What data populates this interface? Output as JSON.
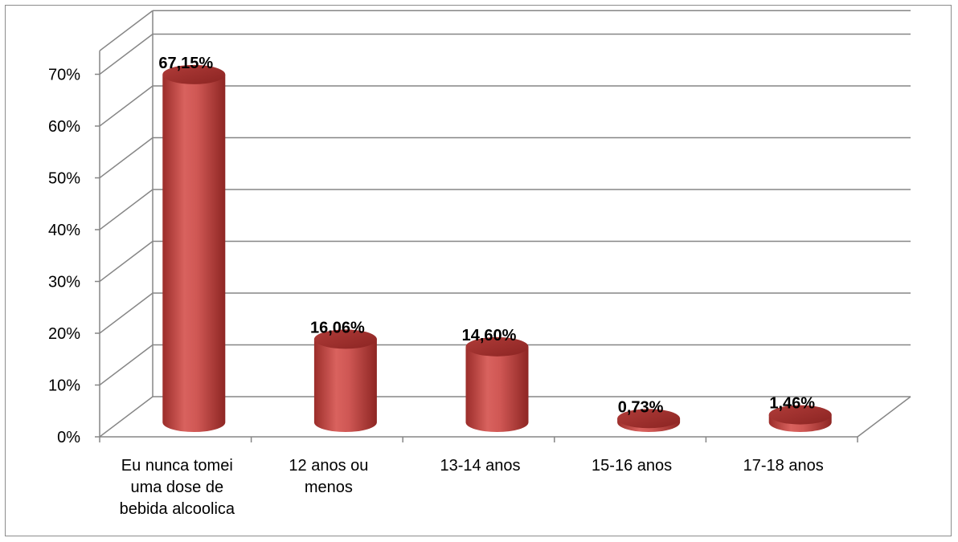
{
  "chart_data": {
    "type": "bar",
    "style": "3d-cylinder",
    "categories": [
      "Eu nunca tomei uma dose de bebida alcoolica",
      "12 anos ou menos",
      "13-14 anos",
      "15-16 anos",
      "17-18 anos"
    ],
    "values": [
      67.15,
      16.06,
      14.6,
      0.73,
      1.46
    ],
    "data_labels": [
      "67,15%",
      "16,06%",
      "14,60%",
      "0,73%",
      "1,46%"
    ],
    "yticks": [
      "0%",
      "10%",
      "20%",
      "30%",
      "40%",
      "50%",
      "60%",
      "70%"
    ],
    "ylim": [
      0,
      70
    ],
    "grid": true,
    "legend": "none",
    "title": "",
    "xlabel": "",
    "ylabel": "",
    "colors": {
      "bar": "#c0504d",
      "bar_dark": "#8b2422",
      "bar_light": "#de7a77",
      "grid": "#868686"
    }
  }
}
